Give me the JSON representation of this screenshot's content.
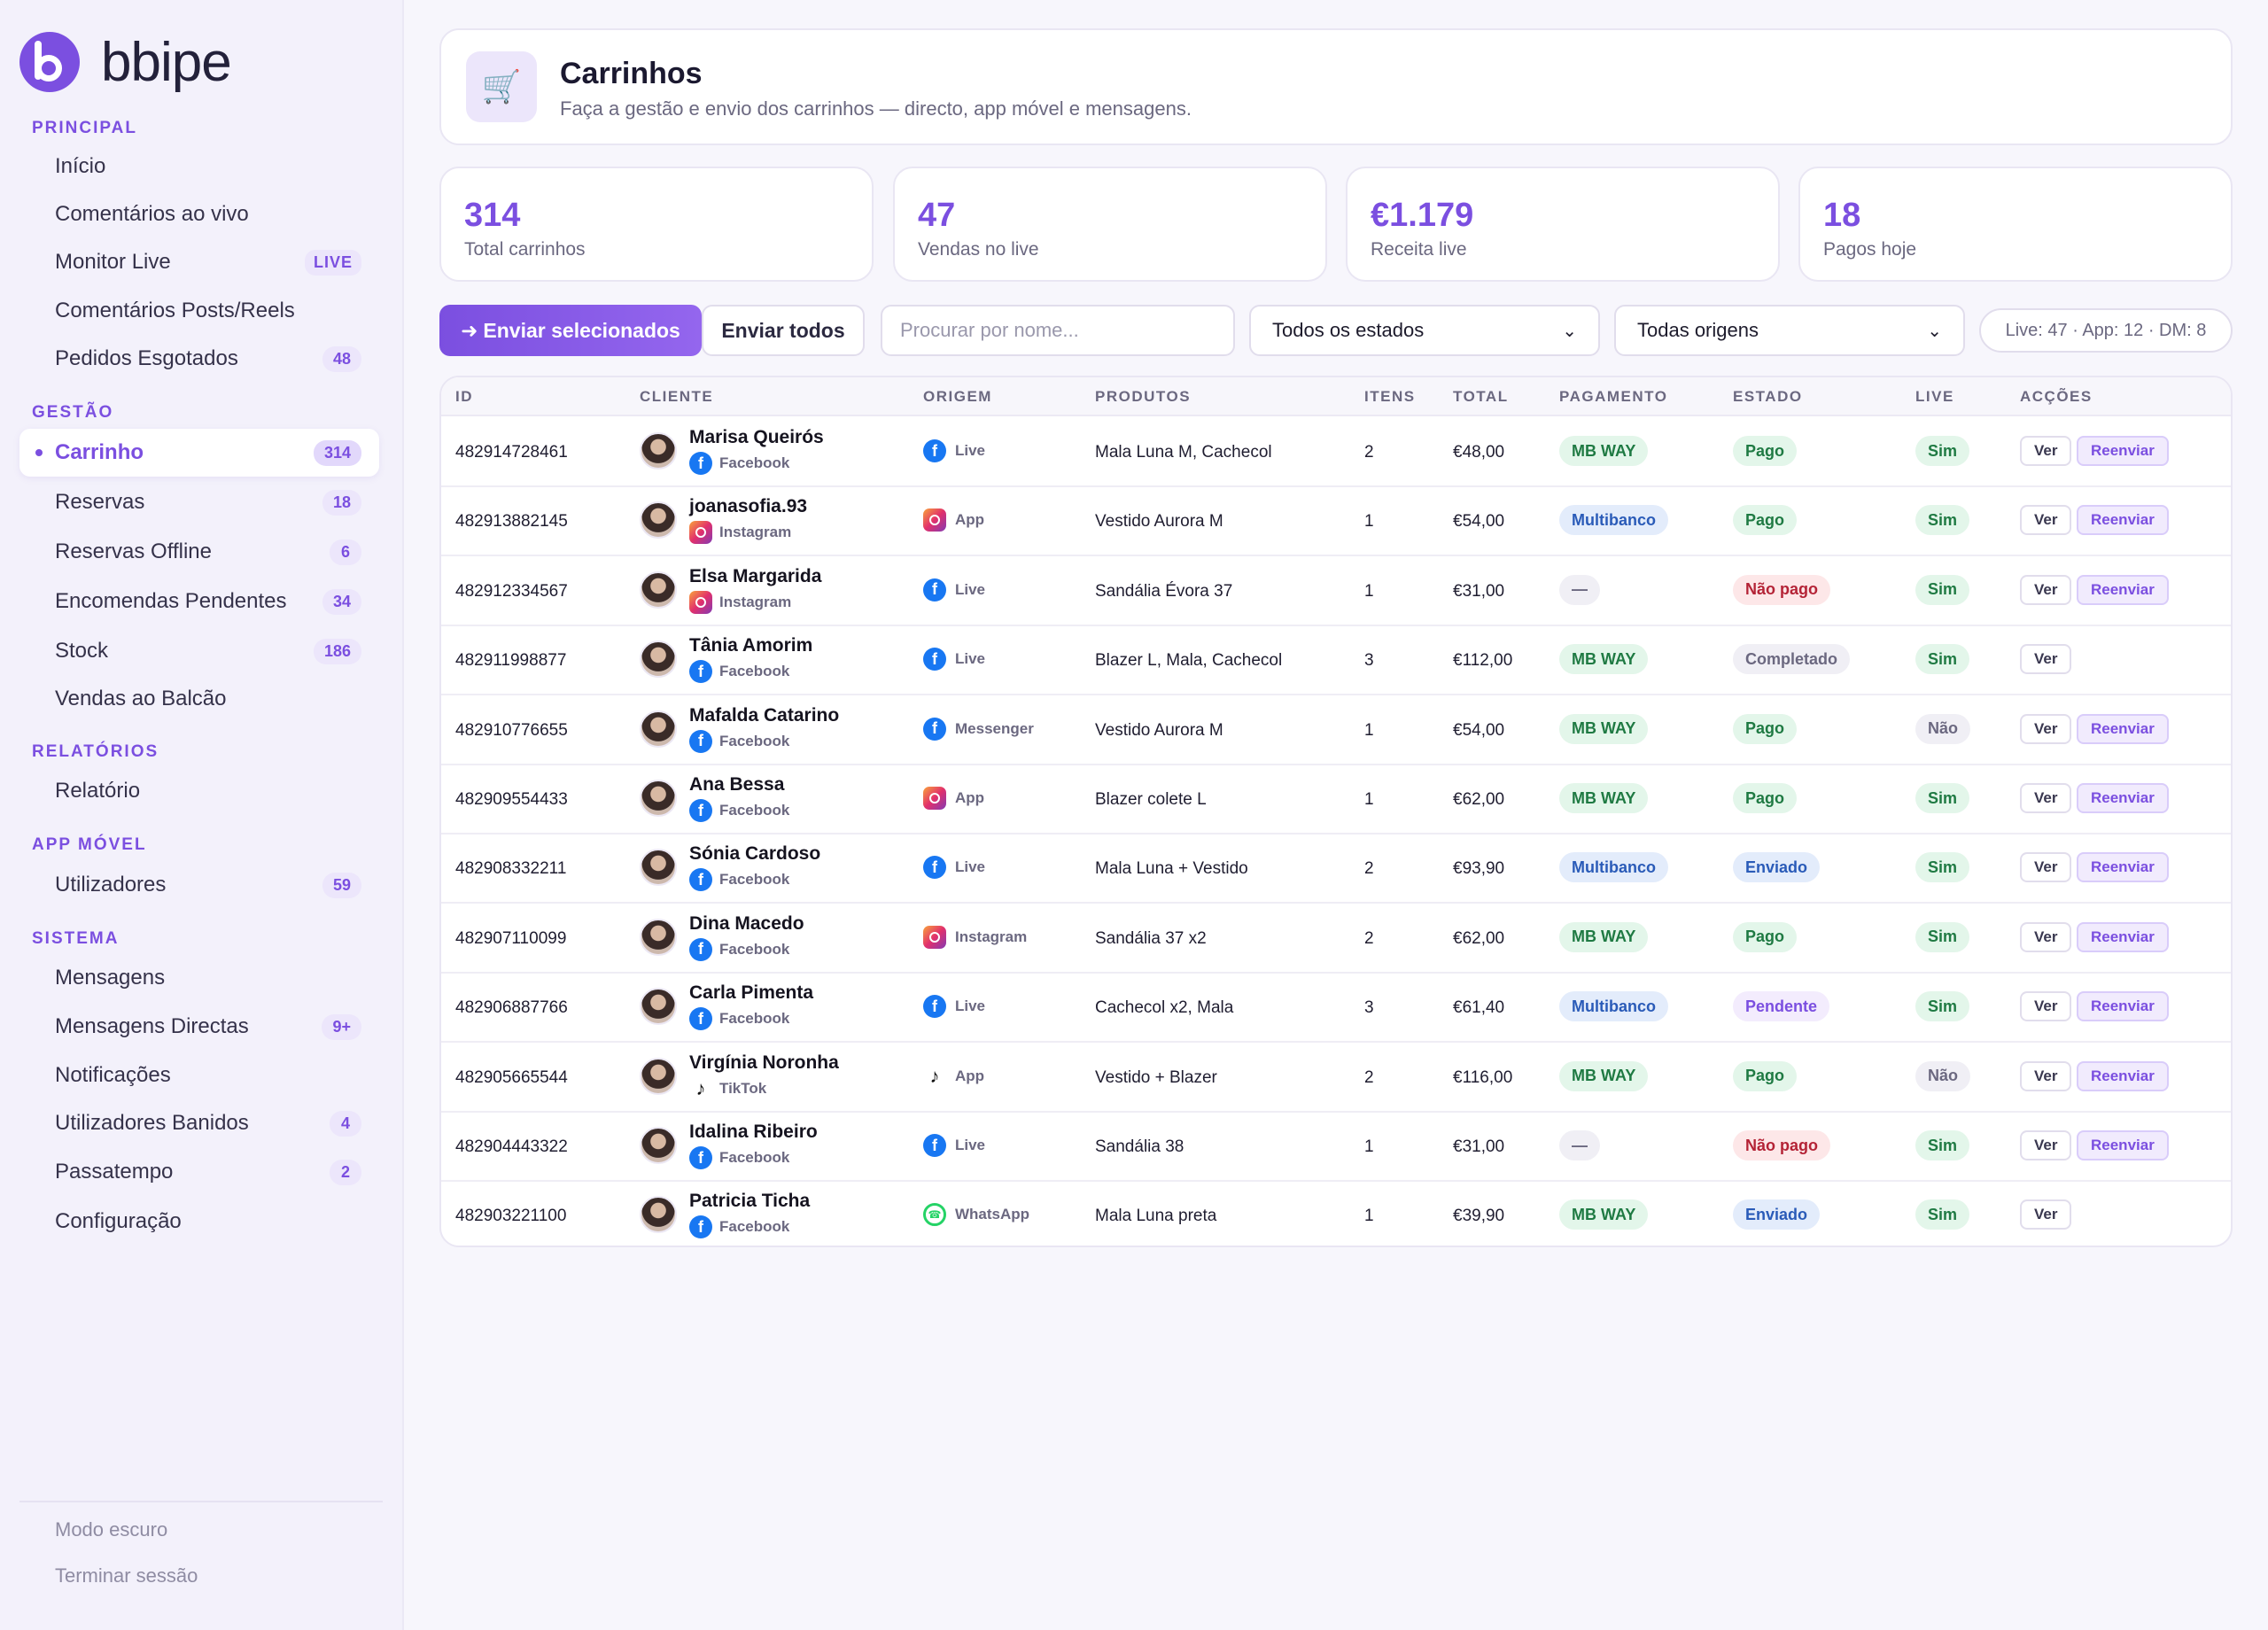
{
  "brand": {
    "name": "bbipe"
  },
  "sidebar": {
    "sections": [
      {
        "title": "PRINCIPAL",
        "items": [
          {
            "label": "Início"
          },
          {
            "label": "Comentários ao vivo"
          },
          {
            "label": "Monitor Live",
            "badge": "LIVE"
          },
          {
            "label": "Comentários Posts/Reels"
          },
          {
            "label": "Pedidos Esgotados",
            "count": "48"
          }
        ]
      },
      {
        "title": "GESTÃO",
        "items": [
          {
            "label": "Carrinho",
            "count": "314",
            "active": true
          },
          {
            "label": "Reservas",
            "count": "18"
          },
          {
            "label": "Reservas Offline",
            "count": "6"
          },
          {
            "label": "Encomendas Pendentes",
            "count": "34"
          },
          {
            "label": "Stock",
            "count": "186"
          },
          {
            "label": "Vendas ao Balcão"
          }
        ]
      },
      {
        "title": "RELATÓRIOS",
        "items": [
          {
            "label": "Relatório"
          }
        ]
      },
      {
        "title": "APP MÓVEL",
        "items": [
          {
            "label": "Utilizadores",
            "count": "59"
          }
        ]
      },
      {
        "title": "SISTEMA",
        "items": [
          {
            "label": "Mensagens"
          },
          {
            "label": "Mensagens Directas",
            "count": "9+"
          },
          {
            "label": "Notificações"
          },
          {
            "label": "Utilizadores Banidos",
            "count": "4"
          },
          {
            "label": "Passatempo",
            "count": "2"
          },
          {
            "label": "Configuração"
          }
        ]
      }
    ],
    "bottom": {
      "dark_mode": "Modo escuro",
      "logout": "Terminar sessão"
    }
  },
  "header": {
    "icon": "cart-icon",
    "title": "Carrinhos",
    "subtitle": "Faça a gestão e envio dos carrinhos — directo, app móvel e mensagens."
  },
  "stats": [
    {
      "value": "314",
      "label": "Total carrinhos"
    },
    {
      "value": "47",
      "label": "Vendas no live"
    },
    {
      "value": "€1.179",
      "label": "Receita live"
    },
    {
      "value": "18",
      "label": "Pagos hoje"
    }
  ],
  "toolbar": {
    "send_selected": "Enviar selecionados",
    "send_all": "Enviar todos",
    "search_placeholder": "Procurar por nome...",
    "status_filter": "Todos os estados",
    "origin_filter": "Todas origens",
    "summary": "Live: 47 · App: 12 · DM: 8"
  },
  "table": {
    "columns": [
      "ID",
      "CLIENTE",
      "ORIGEM",
      "PRODUTOS",
      "ITENS",
      "TOTAL",
      "PAGAMENTO",
      "ESTADO",
      "LIVE",
      "ACÇÕES"
    ],
    "action_view": "Ver",
    "action_resend": "Reenviar",
    "rows": [
      {
        "id": "482914728461",
        "name": "Marisa Queirós",
        "network": "Facebook",
        "net_icon": "fb",
        "origin": "Live",
        "origin_icon": "fb",
        "products": "Mala Luna M, Cachecol",
        "items": "2",
        "total": "€48,00",
        "payment": "MB WAY",
        "pay_cls": "p-mbway",
        "status": "Pago",
        "st_cls": "p-pago",
        "live": "Sim",
        "live_cls": "p-sim",
        "resend": true
      },
      {
        "id": "482913882145",
        "name": "joanasofia.93",
        "network": "Instagram",
        "net_icon": "ig",
        "origin": "App",
        "origin_icon": "ig",
        "products": "Vestido Aurora M",
        "items": "1",
        "total": "€54,00",
        "payment": "Multibanco",
        "pay_cls": "p-multi",
        "status": "Pago",
        "st_cls": "p-pago",
        "live": "Sim",
        "live_cls": "p-sim",
        "resend": true
      },
      {
        "id": "482912334567",
        "name": "Elsa Margarida",
        "network": "Instagram",
        "net_icon": "ig",
        "origin": "Live",
        "origin_icon": "fb",
        "products": "Sandália Évora 37",
        "items": "1",
        "total": "€31,00",
        "payment": "—",
        "pay_cls": "p-none",
        "status": "Não pago",
        "st_cls": "p-naopago",
        "live": "Sim",
        "live_cls": "p-sim",
        "resend": true
      },
      {
        "id": "482911998877",
        "name": "Tânia Amorim",
        "network": "Facebook",
        "net_icon": "fb",
        "origin": "Live",
        "origin_icon": "fb",
        "products": "Blazer L, Mala, Cachecol",
        "items": "3",
        "total": "€112,00",
        "payment": "MB WAY",
        "pay_cls": "p-mbway",
        "status": "Completado",
        "st_cls": "p-comp",
        "live": "Sim",
        "live_cls": "p-sim",
        "resend": false
      },
      {
        "id": "482910776655",
        "name": "Mafalda Catarino",
        "network": "Facebook",
        "net_icon": "fb",
        "origin": "Messenger",
        "origin_icon": "ms",
        "products": "Vestido Aurora M",
        "items": "1",
        "total": "€54,00",
        "payment": "MB WAY",
        "pay_cls": "p-mbway",
        "status": "Pago",
        "st_cls": "p-pago",
        "live": "Não",
        "live_cls": "p-nao",
        "resend": true
      },
      {
        "id": "482909554433",
        "name": "Ana Bessa",
        "network": "Facebook",
        "net_icon": "fb",
        "origin": "App",
        "origin_icon": "ig",
        "products": "Blazer colete L",
        "items": "1",
        "total": "€62,00",
        "payment": "MB WAY",
        "pay_cls": "p-mbway",
        "status": "Pago",
        "st_cls": "p-pago",
        "live": "Sim",
        "live_cls": "p-sim",
        "resend": true
      },
      {
        "id": "482908332211",
        "name": "Sónia Cardoso",
        "network": "Facebook",
        "net_icon": "fb",
        "origin": "Live",
        "origin_icon": "fb",
        "products": "Mala Luna + Vestido",
        "items": "2",
        "total": "€93,90",
        "payment": "Multibanco",
        "pay_cls": "p-multi",
        "status": "Enviado",
        "st_cls": "p-enviado",
        "live": "Sim",
        "live_cls": "p-sim",
        "resend": true
      },
      {
        "id": "482907110099",
        "name": "Dina Macedo",
        "network": "Facebook",
        "net_icon": "fb",
        "origin": "Instagram",
        "origin_icon": "ig",
        "products": "Sandália 37 x2",
        "items": "2",
        "total": "€62,00",
        "payment": "MB WAY",
        "pay_cls": "p-mbway",
        "status": "Pago",
        "st_cls": "p-pago",
        "live": "Sim",
        "live_cls": "p-sim",
        "resend": true
      },
      {
        "id": "482906887766",
        "name": "Carla Pimenta",
        "network": "Facebook",
        "net_icon": "fb",
        "origin": "Live",
        "origin_icon": "fb",
        "products": "Cachecol x2, Mala",
        "items": "3",
        "total": "€61,40",
        "payment": "Multibanco",
        "pay_cls": "p-multi",
        "status": "Pendente",
        "st_cls": "p-pend",
        "live": "Sim",
        "live_cls": "p-sim",
        "resend": true
      },
      {
        "id": "482905665544",
        "name": "Virgínia Noronha",
        "network": "TikTok",
        "net_icon": "tk",
        "origin": "App",
        "origin_icon": "tk",
        "products": "Vestido + Blazer",
        "items": "2",
        "total": "€116,00",
        "payment": "MB WAY",
        "pay_cls": "p-mbway",
        "status": "Pago",
        "st_cls": "p-pago",
        "live": "Não",
        "live_cls": "p-nao",
        "resend": true
      },
      {
        "id": "482904443322",
        "name": "Idalina Ribeiro",
        "network": "Facebook",
        "net_icon": "fb",
        "origin": "Live",
        "origin_icon": "fb",
        "products": "Sandália 38",
        "items": "1",
        "total": "€31,00",
        "payment": "—",
        "pay_cls": "p-none",
        "status": "Não pago",
        "st_cls": "p-naopago",
        "live": "Sim",
        "live_cls": "p-sim",
        "resend": true
      },
      {
        "id": "482903221100",
        "name": "Patricia Ticha",
        "network": "Facebook",
        "net_icon": "fb",
        "origin": "WhatsApp",
        "origin_icon": "wa",
        "products": "Mala Luna preta",
        "items": "1",
        "total": "€39,90",
        "payment": "MB WAY",
        "pay_cls": "p-mbway",
        "status": "Enviado",
        "st_cls": "p-enviado",
        "live": "Sim",
        "live_cls": "p-sim",
        "resend": false
      }
    ]
  },
  "colors": {
    "accent": "#7b4fe0",
    "background": "#f7f6fc",
    "sidebar": "#f3f1fb"
  }
}
